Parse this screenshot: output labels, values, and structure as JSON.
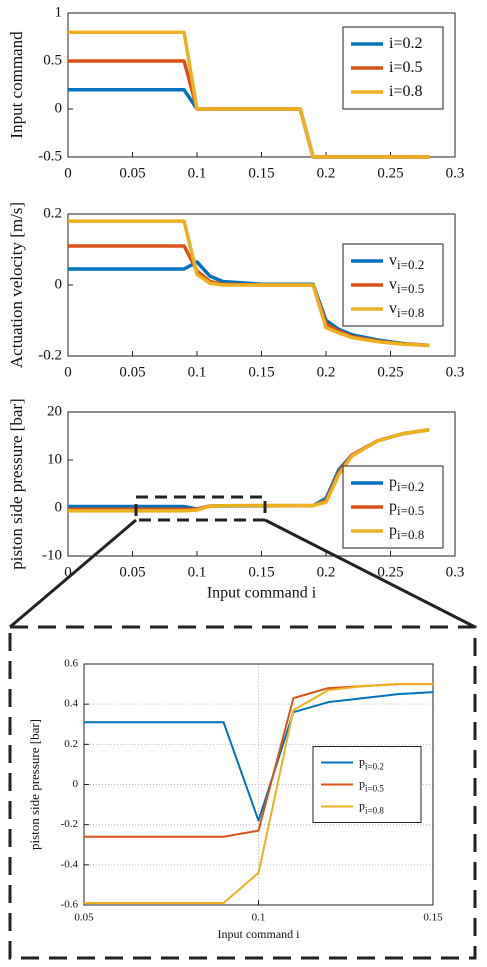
{
  "chart_data": [
    {
      "type": "line",
      "ylabel": "Input command",
      "x": [
        0,
        0.09,
        0.1,
        0.18,
        0.19,
        0.28
      ],
      "series": [
        {
          "name": "i=0.2",
          "color": "#0072BD",
          "values": [
            0.2,
            0.2,
            0,
            0,
            -0.5,
            -0.5
          ]
        },
        {
          "name": "i=0.5",
          "color": "#D95319",
          "values": [
            0.5,
            0.5,
            0,
            0,
            -0.5,
            -0.5
          ]
        },
        {
          "name": "i=0.8",
          "color": "#EDB120",
          "values": [
            0.8,
            0.8,
            0,
            0,
            -0.5,
            -0.5
          ]
        }
      ],
      "xlim": [
        0,
        0.3
      ],
      "xticks": [
        0,
        0.05,
        0.1,
        0.15,
        0.2,
        0.25,
        0.3
      ],
      "ylim": [
        -0.5,
        1
      ],
      "yticks": [
        -0.5,
        0,
        0.5,
        1
      ],
      "grid": false,
      "legend": "northeast"
    },
    {
      "type": "line",
      "ylabel": "Actuation velocity [m/s]",
      "x": [
        0,
        0.09,
        0.1,
        0.11,
        0.12,
        0.15,
        0.18,
        0.19,
        0.2,
        0.21,
        0.22,
        0.24,
        0.26,
        0.28
      ],
      "series": [
        {
          "name": "v",
          "subscript": "i=0.2",
          "color": "#0072BD",
          "values": [
            0.045,
            0.045,
            0.065,
            0.025,
            0.01,
            0.002,
            0.002,
            0.002,
            -0.1,
            -0.125,
            -0.14,
            -0.155,
            -0.165,
            -0.17
          ]
        },
        {
          "name": "v",
          "subscript": "i=0.5",
          "color": "#D95319",
          "values": [
            0.11,
            0.11,
            0.04,
            0.01,
            0.002,
            0,
            0,
            0,
            -0.11,
            -0.13,
            -0.145,
            -0.158,
            -0.166,
            -0.17
          ]
        },
        {
          "name": "v",
          "subscript": "i=0.8",
          "color": "#EDB120",
          "values": [
            0.18,
            0.18,
            0.03,
            0.005,
            0,
            0,
            0,
            0,
            -0.12,
            -0.135,
            -0.148,
            -0.16,
            -0.167,
            -0.17
          ]
        }
      ],
      "xlim": [
        0,
        0.3
      ],
      "xticks": [
        0,
        0.05,
        0.1,
        0.15,
        0.2,
        0.25,
        0.3
      ],
      "ylim": [
        -0.2,
        0.2
      ],
      "yticks": [
        -0.2,
        0,
        0.2
      ],
      "grid": false,
      "legend": "east"
    },
    {
      "type": "line",
      "ylabel": "piston side pressure [bar]",
      "xlabel": "Input command i",
      "x": [
        0,
        0.05,
        0.09,
        0.1,
        0.11,
        0.12,
        0.15,
        0.19,
        0.2,
        0.21,
        0.22,
        0.24,
        0.26,
        0.28
      ],
      "series": [
        {
          "name": "p",
          "subscript": "i=0.2",
          "color": "#0072BD",
          "values": [
            0.3,
            0.3,
            0.3,
            -0.2,
            0.37,
            0.41,
            0.45,
            0.5,
            2,
            8,
            11,
            14,
            15.5,
            16.3
          ]
        },
        {
          "name": "p",
          "subscript": "i=0.5",
          "color": "#D95319",
          "values": [
            -0.26,
            -0.26,
            -0.26,
            -0.23,
            0.43,
            0.48,
            0.49,
            0.5,
            1.5,
            7.5,
            11,
            14,
            15.5,
            16.3
          ]
        },
        {
          "name": "p",
          "subscript": "i=0.8",
          "color": "#EDB120",
          "values": [
            -0.59,
            -0.59,
            -0.59,
            -0.44,
            0.37,
            0.47,
            0.49,
            0.5,
            1.2,
            7,
            10.8,
            14,
            15.5,
            16.3
          ]
        }
      ],
      "xlim": [
        0,
        0.3
      ],
      "xticks": [
        0,
        0.05,
        0.1,
        0.15,
        0.2,
        0.25,
        0.3
      ],
      "ylim": [
        -10,
        20
      ],
      "yticks": [
        -10,
        0,
        10,
        20
      ],
      "grid": false,
      "legend": "southeast"
    },
    {
      "type": "line",
      "ylabel": "piston side pressure [bar]",
      "xlabel": "Input command i",
      "x": [
        0.05,
        0.09,
        0.1,
        0.11,
        0.12,
        0.13,
        0.14,
        0.15
      ],
      "series": [
        {
          "name": "p",
          "subscript": "i=0.2",
          "color": "#0072BD",
          "values": [
            0.31,
            0.31,
            -0.18,
            0.36,
            0.41,
            0.43,
            0.45,
            0.46
          ]
        },
        {
          "name": "p",
          "subscript": "i=0.5",
          "color": "#D95319",
          "values": [
            -0.26,
            -0.26,
            -0.23,
            0.43,
            0.48,
            0.49,
            0.5,
            0.5
          ]
        },
        {
          "name": "p",
          "subscript": "i=0.8",
          "color": "#EDB120",
          "values": [
            -0.59,
            -0.59,
            -0.44,
            0.37,
            0.47,
            0.49,
            0.5,
            0.5
          ]
        }
      ],
      "xlim": [
        0.05,
        0.15
      ],
      "xticks": [
        0.05,
        0.1,
        0.15
      ],
      "ylim": [
        -0.6,
        0.6
      ],
      "yticks": [
        -0.6,
        -0.4,
        -0.2,
        0,
        0.2,
        0.4,
        0.6
      ],
      "grid": true,
      "legend": "east"
    }
  ]
}
